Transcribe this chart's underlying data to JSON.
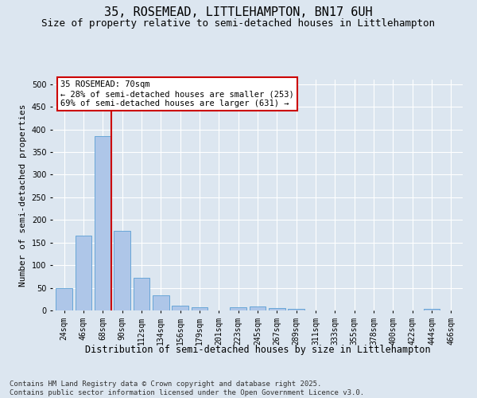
{
  "title": "35, ROSEMEAD, LITTLEHAMPTON, BN17 6UH",
  "subtitle": "Size of property relative to semi-detached houses in Littlehampton",
  "xlabel": "Distribution of semi-detached houses by size in Littlehampton",
  "ylabel": "Number of semi-detached properties",
  "categories": [
    "24sqm",
    "46sqm",
    "68sqm",
    "90sqm",
    "112sqm",
    "134sqm",
    "156sqm",
    "179sqm",
    "201sqm",
    "223sqm",
    "245sqm",
    "267sqm",
    "289sqm",
    "311sqm",
    "333sqm",
    "355sqm",
    "378sqm",
    "400sqm",
    "422sqm",
    "444sqm",
    "466sqm"
  ],
  "values": [
    50,
    165,
    385,
    175,
    72,
    33,
    10,
    7,
    0,
    7,
    9,
    5,
    4,
    0,
    0,
    0,
    0,
    0,
    0,
    3,
    0
  ],
  "bar_color": "#aec6e8",
  "bar_edge_color": "#5a9fd4",
  "vline_x": 2.42,
  "vline_color": "#cc0000",
  "annotation_text": "35 ROSEMEAD: 70sqm\n← 28% of semi-detached houses are smaller (253)\n69% of semi-detached houses are larger (631) →",
  "annotation_box_color": "#ffffff",
  "annotation_box_edge": "#cc0000",
  "bg_color": "#dce6f0",
  "plot_bg_color": "#dce6f0",
  "grid_color": "#ffffff",
  "ylim": [
    0,
    510
  ],
  "yticks": [
    0,
    50,
    100,
    150,
    200,
    250,
    300,
    350,
    400,
    450,
    500
  ],
  "footnote": "Contains HM Land Registry data © Crown copyright and database right 2025.\nContains public sector information licensed under the Open Government Licence v3.0.",
  "title_fontsize": 11,
  "subtitle_fontsize": 9,
  "xlabel_fontsize": 8.5,
  "ylabel_fontsize": 8,
  "tick_fontsize": 7,
  "annot_fontsize": 7.5,
  "footnote_fontsize": 6.5
}
